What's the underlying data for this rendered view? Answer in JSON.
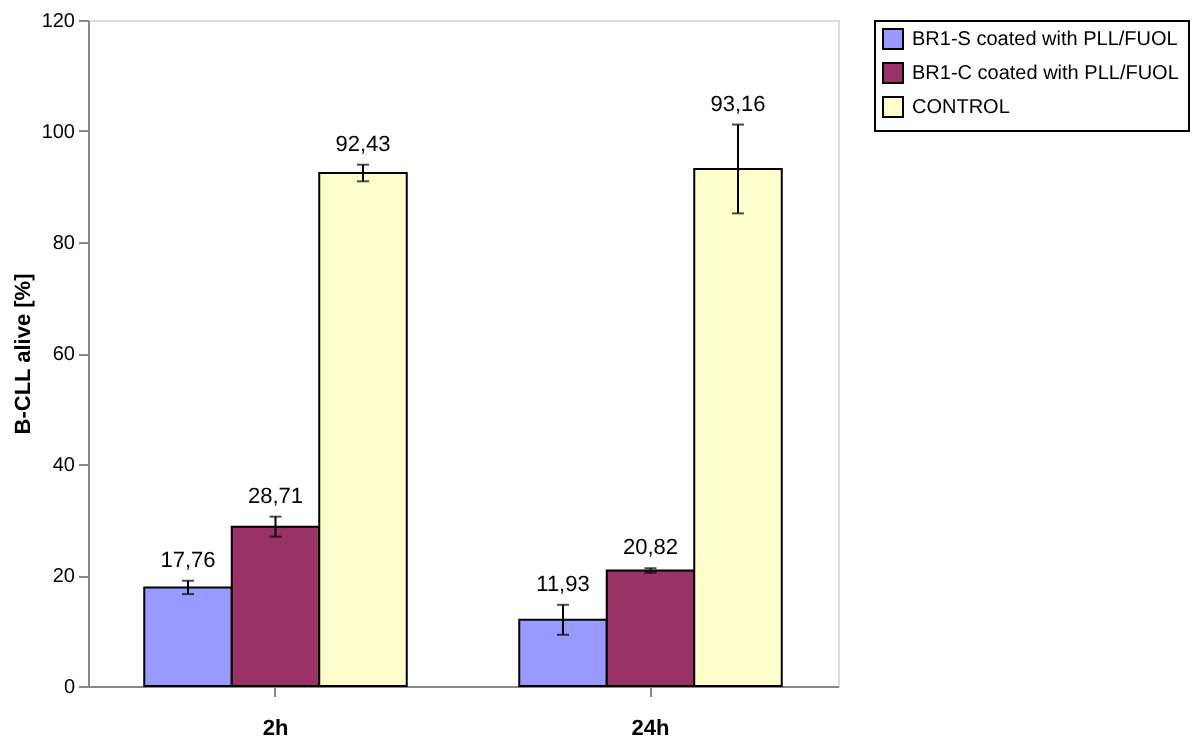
{
  "chart_data": {
    "type": "bar",
    "ylabel": "B-CLL alive [%]",
    "categories": [
      "2h",
      "24h"
    ],
    "series": [
      {
        "name": "BR1-S coated with PLL/FUOL",
        "color": "#9999ff",
        "values": [
          17.76,
          11.93
        ],
        "errors": [
          1.2,
          2.7
        ],
        "value_labels": [
          "17,76",
          "11,93"
        ]
      },
      {
        "name": "BR1-C coated with PLL/FUOL",
        "color": "#993366",
        "values": [
          28.71,
          20.82
        ],
        "errors": [
          1.8,
          0.4
        ],
        "value_labels": [
          "28,71",
          "20,82"
        ]
      },
      {
        "name": "CONTROL",
        "color": "#ffffcc",
        "values": [
          92.43,
          93.16
        ],
        "errors": [
          1.5,
          8.0
        ],
        "value_labels": [
          "92,43",
          "93,16"
        ]
      }
    ],
    "ylim": [
      0,
      120
    ],
    "yticks": [
      0,
      20,
      40,
      60,
      80,
      100,
      120
    ],
    "grid": false,
    "legend": "right"
  }
}
